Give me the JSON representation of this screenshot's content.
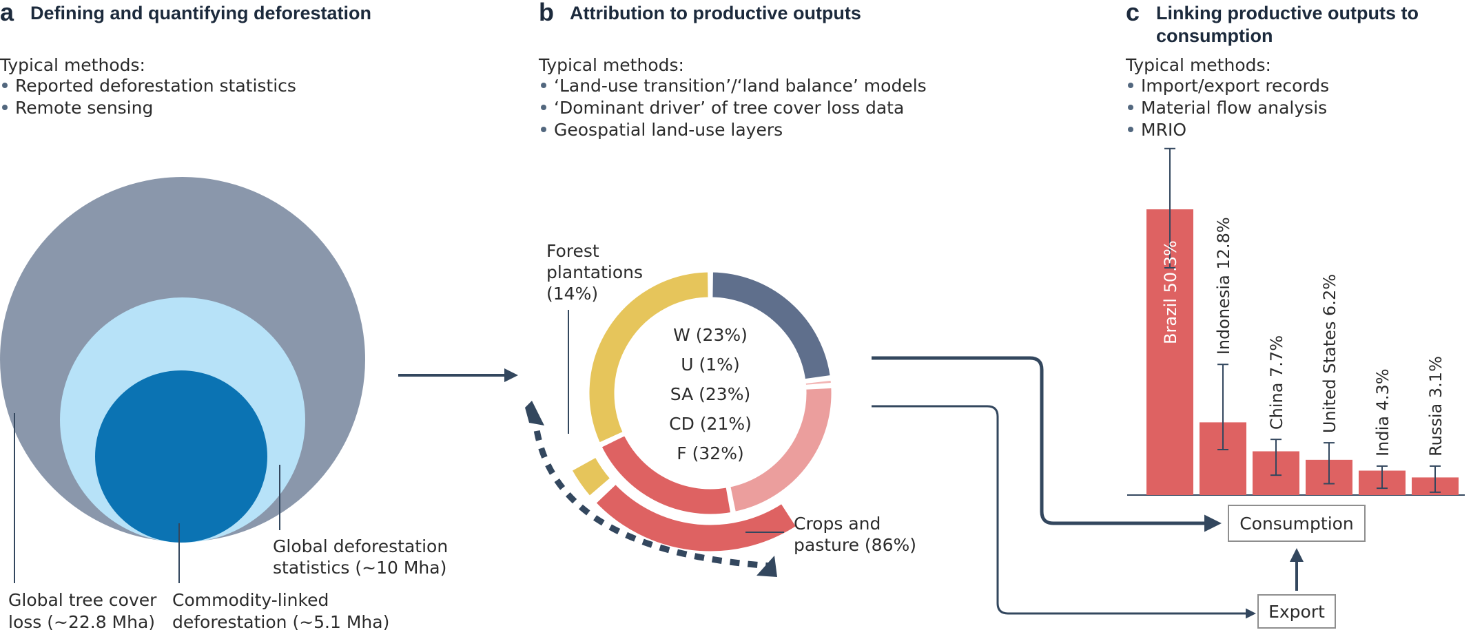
{
  "panel_a": {
    "letter": "a",
    "title": "Defining and quantifying deforestation",
    "methods_heading": "Typical methods:",
    "methods": [
      "Reported deforestation statistics",
      "Remote sensing"
    ],
    "circles": {
      "outer": {
        "label_lines": [
          "Global tree cover",
          "loss (~22.8 Mha)"
        ],
        "value": 22.8,
        "color": "#8a97ab"
      },
      "middle": {
        "label_lines": [
          "Global deforestation",
          "statistics (~10 Mha)"
        ],
        "value": 10,
        "color": "#b7e2f8"
      },
      "inner": {
        "label_lines": [
          "Commodity-linked",
          "deforestation  (~5.1 Mha)"
        ],
        "value": 5.1,
        "color": "#0b73b3"
      }
    }
  },
  "panel_b": {
    "letter": "b",
    "title": "Attribution to productive outputs",
    "methods_heading": "Typical methods:",
    "methods": [
      "‘Land-use transition’/‘land balance’ models",
      "‘Dominant driver’ of tree cover loss data",
      "Geospatial land-use layers"
    ],
    "ring_segments": [
      {
        "label": "W (23%)",
        "value": 23,
        "color": "#5f6f8c"
      },
      {
        "label": "U (1%)",
        "value": 1,
        "color": "#f3b6b5"
      },
      {
        "label": "SA (23%)",
        "value": 23,
        "color": "#eb9e9d"
      },
      {
        "label": "CD (21%)",
        "value": 21,
        "color": "#de6262"
      },
      {
        "label": "F (32%)",
        "value": 32,
        "color": "#e6c55b"
      }
    ],
    "outer_arcs": [
      {
        "label_lines": [
          "Forest",
          "plantations",
          "(14%)"
        ],
        "value": 14,
        "color": "#e6c55b"
      },
      {
        "label_lines": [
          "Crops and",
          "pasture (86%)"
        ],
        "value": 86,
        "color": "#de6262"
      }
    ],
    "arrow_color": "#33475e"
  },
  "panel_c": {
    "letter": "c",
    "title_lines": [
      "Linking productive outputs to",
      "consumption"
    ],
    "methods_heading": "Typical methods:",
    "methods": [
      "Import/export records",
      "Material flow analysis",
      "MRIO"
    ],
    "consumption_label": "Consumption",
    "export_label": "Export",
    "bar_color": "#de6262"
  },
  "chart_data": {
    "type": "bar",
    "categories": [
      "Brazil",
      "Indonesia",
      "China",
      "United States",
      "India",
      "Russia"
    ],
    "labels": [
      "Brazil 50.3%",
      "Indonesia 12.8%",
      "China 7.7%",
      "United States 6.2%",
      "India 4.3%",
      "Russia 3.1%"
    ],
    "values": [
      50.3,
      12.8,
      7.7,
      6.2,
      4.3,
      3.1
    ],
    "error_low": [
      40,
      8,
      3.5,
      2,
      1.2,
      0.5
    ],
    "error_high": [
      61,
      23,
      9.8,
      9.2,
      5.1,
      5.1
    ],
    "ylim": [
      0,
      60
    ]
  }
}
